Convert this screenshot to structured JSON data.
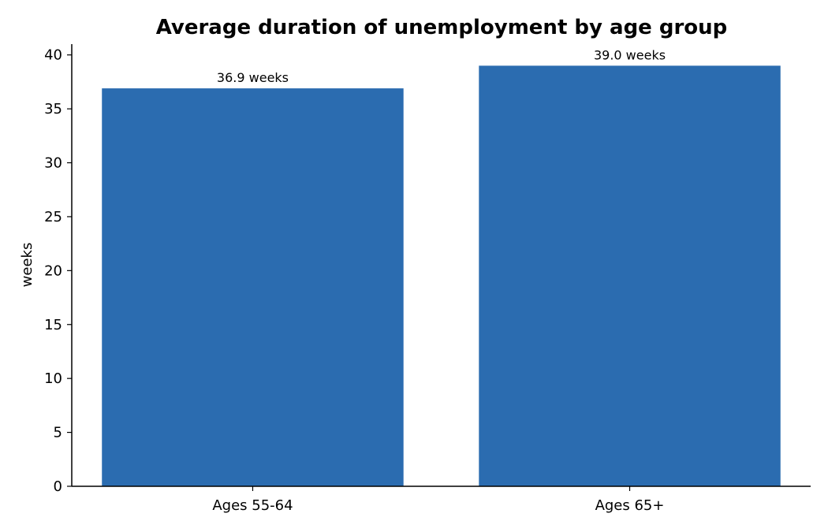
{
  "chart_data": {
    "type": "bar",
    "title": "Average duration of unemployment by age group",
    "xlabel": "",
    "ylabel": "weeks",
    "categories": [
      "Ages 55-64",
      "Ages 65+"
    ],
    "values": [
      36.9,
      39.0
    ],
    "data_labels": [
      "36.9 weeks",
      "39.0 weeks"
    ],
    "ylim": [
      0,
      41
    ],
    "yticks": [
      0,
      5,
      10,
      15,
      20,
      25,
      30,
      35,
      40
    ],
    "grid": false,
    "legend": "none",
    "bar_color": "#2b6cb0"
  }
}
